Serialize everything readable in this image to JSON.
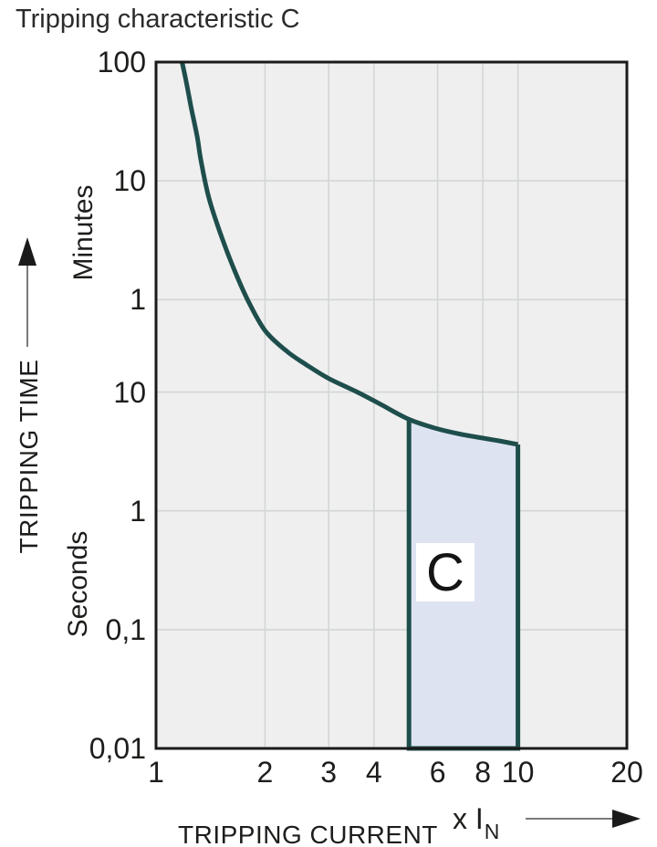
{
  "title": "Tripping characteristic C",
  "colors": {
    "curve": "#1e4e4c",
    "region_fill": "#dee3f2",
    "plot_background": "#efeff0",
    "gridline": "#d3d6d6",
    "frame": "#1a1a1a",
    "text": "#1d1d1b",
    "arrow_shaft": "#7a7a7a",
    "arrow_head": "#1a1a1a",
    "region_label_box": "#ffffff"
  },
  "y_axis_labels": {
    "title": "TRIPPING TIME",
    "unit_upper": "Minutes",
    "unit_lower": "Seconds"
  },
  "x_axis_labels": {
    "title": "TRIPPING CURRENT",
    "unit_main": "x I",
    "unit_sub": "N"
  },
  "chart_data": {
    "type": "area",
    "title": "Tripping characteristic C",
    "description": "Time-current tripping characteristic C of a miniature circuit breaker; shaded instantaneous trip band C between 5 and 10 times rated current",
    "x_axis": {
      "label": "TRIPPING CURRENT",
      "unit": "x IN (multiple of rated current)",
      "scale": "log",
      "range": [
        1,
        20
      ],
      "ticks": [
        "1",
        "2",
        "3",
        "4",
        "6",
        "8",
        "10",
        "20"
      ],
      "tick_values": [
        1,
        2,
        3,
        4,
        6,
        8,
        10,
        20
      ],
      "gridline_values": [
        2,
        3,
        4,
        6,
        8,
        10
      ]
    },
    "y_axis": {
      "label": "TRIPPING TIME",
      "scale": "log",
      "unit": "seconds (axis spans 0,01 s to 100 Minutes)",
      "range": [
        0.01,
        6000
      ],
      "ticks": [
        {
          "label": "100",
          "unit": "Minutes",
          "seconds": 6000
        },
        {
          "label": "10",
          "unit": "Minutes",
          "seconds": 600
        },
        {
          "label": "1",
          "unit": "Minutes",
          "seconds": 60
        },
        {
          "label": "10",
          "unit": "Seconds",
          "seconds": 10
        },
        {
          "label": "1",
          "unit": "Seconds",
          "seconds": 1
        },
        {
          "label": "0,1",
          "unit": "Seconds",
          "seconds": 0.1
        },
        {
          "label": "0,01",
          "unit": "Seconds",
          "seconds": 0.01
        }
      ],
      "gridline_seconds": [
        600,
        60,
        10,
        1,
        0.1
      ]
    },
    "series": [
      {
        "name": "thermal-tripping-curve",
        "type": "line",
        "points_x_in_seconds": [
          [
            1.18,
            6000
          ],
          [
            1.21,
            4200
          ],
          [
            1.25,
            2500
          ],
          [
            1.3,
            1400
          ],
          [
            1.33,
            900
          ],
          [
            1.4,
            430
          ],
          [
            1.52,
            200
          ],
          [
            1.66,
            100
          ],
          [
            1.8,
            58
          ],
          [
            2.0,
            33
          ],
          [
            2.3,
            22
          ],
          [
            2.6,
            17
          ],
          [
            3.0,
            13
          ],
          [
            3.6,
            10
          ],
          [
            4.2,
            7.8
          ],
          [
            5.0,
            5.9
          ],
          [
            6.0,
            4.9
          ],
          [
            7.0,
            4.4
          ],
          [
            8.0,
            4.1
          ],
          [
            9.0,
            3.85
          ],
          [
            10.0,
            3.62
          ]
        ]
      }
    ],
    "region": {
      "label": "C",
      "x_from": 5,
      "x_to": 10,
      "bottom_seconds": 0.01,
      "top_boundary": "curve"
    },
    "legend": "none",
    "grid": "on"
  }
}
